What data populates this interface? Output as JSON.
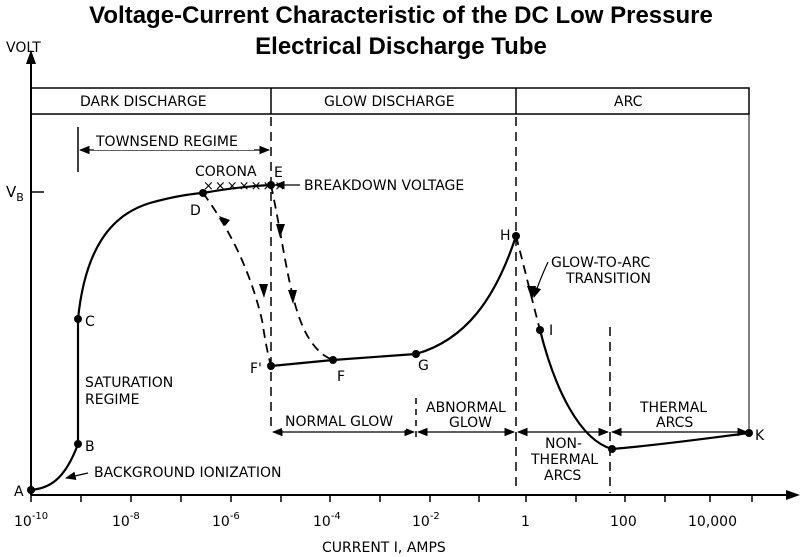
{
  "title": {
    "line1": "Voltage-Current Characteristic of the DC Low Pressure",
    "line2": "Electrical Discharge Tube"
  },
  "axes": {
    "y_label": "VOLT",
    "x_label": "CURRENT I, AMPS",
    "vb_label": "V",
    "vb_sub": "B",
    "x_ticks": [
      {
        "base": "10",
        "exp": "-10"
      },
      {
        "base": "10",
        "exp": "-8"
      },
      {
        "base": "10",
        "exp": "-6"
      },
      {
        "base": "10",
        "exp": "-4"
      },
      {
        "base": "10",
        "exp": "-2"
      },
      {
        "base": "1",
        "exp": ""
      },
      {
        "base": "100",
        "exp": ""
      },
      {
        "base": "10,000",
        "exp": ""
      }
    ]
  },
  "regions": {
    "dark": "DARK DISCHARGE",
    "glow": "GLOW DISCHARGE",
    "arc": "ARC"
  },
  "sub_regions": {
    "townsend": "TOWNSEND REGIME",
    "saturation_1": "SATURATION",
    "saturation_2": "REGIME",
    "normal_glow": "NORMAL GLOW",
    "abnormal_1": "ABNORMAL",
    "abnormal_2": "GLOW",
    "nonthermal_1": "NON-",
    "nonthermal_2": "THERMAL",
    "nonthermal_3": "ARCS",
    "thermal_1": "THERMAL",
    "thermal_2": "ARCS"
  },
  "annotations": {
    "corona": "CORONA",
    "breakdown": "BREAKDOWN VOLTAGE",
    "background": "BACKGROUND IONIZATION",
    "glow_to_arc_1": "GLOW-TO-ARC",
    "glow_to_arc_2": "TRANSITION"
  },
  "points": {
    "A": "A",
    "B": "B",
    "C": "C",
    "D": "D",
    "E": "E",
    "F": "F",
    "Fp": "F'",
    "G": "G",
    "H": "H",
    "I": "I",
    "K": "K"
  },
  "colors": {
    "ink": "#000000",
    "background": "#ffffff"
  }
}
